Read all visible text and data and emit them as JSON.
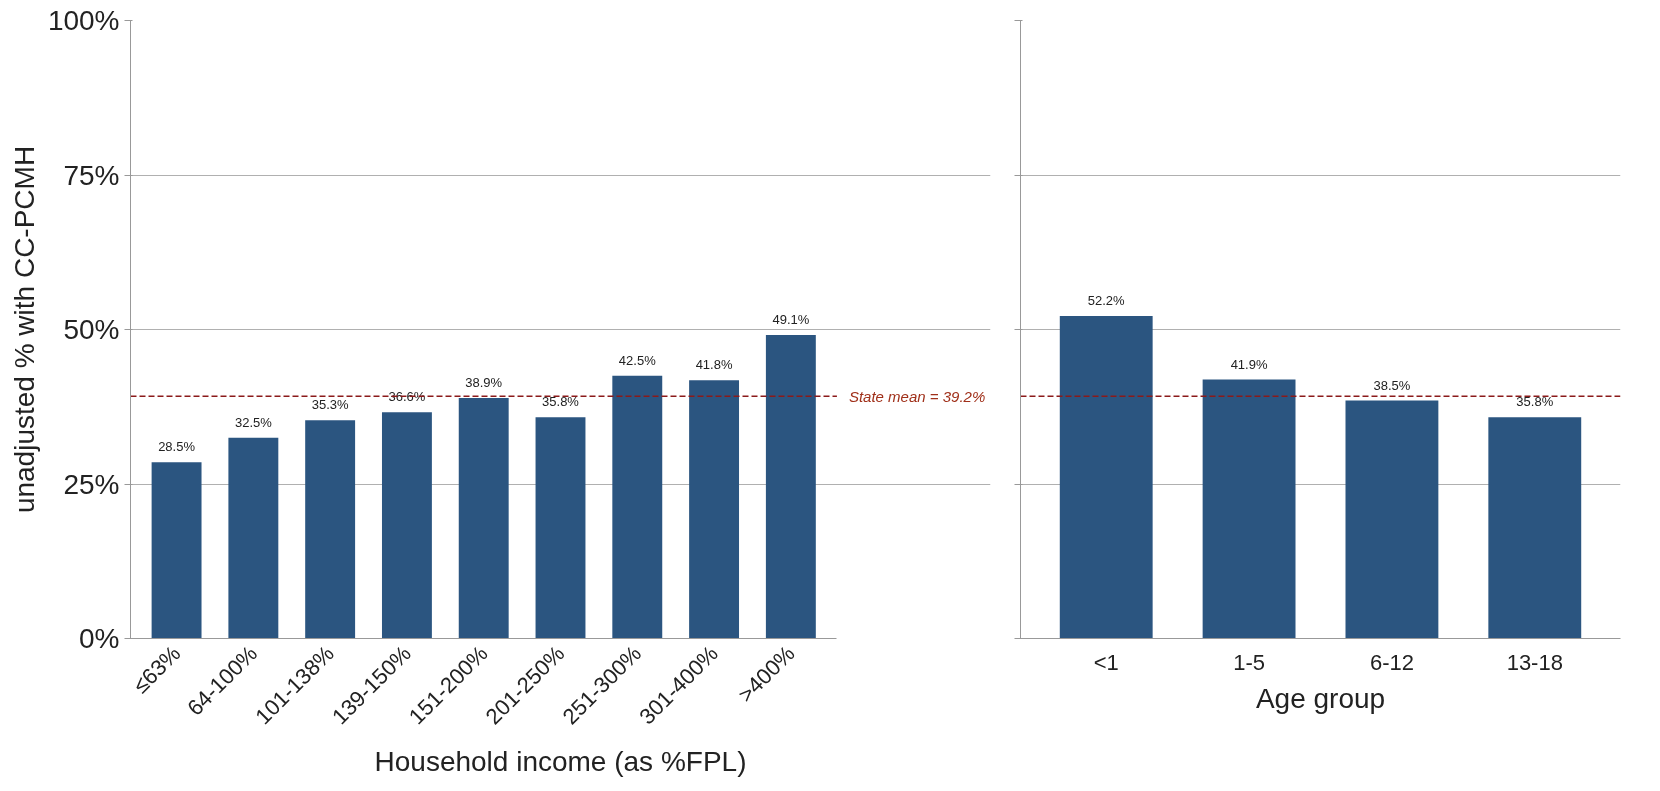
{
  "chart_data": [
    {
      "type": "bar",
      "xlabel": "Household income (as %FPL)",
      "ylabel": "unadjusted % with CC-PCMH",
      "categories": [
        "≤63%",
        "64-100%",
        "101-138%",
        "139-150%",
        "151-200%",
        "201-250%",
        "251-300%",
        "301-400%",
        ">400%"
      ],
      "values": [
        28.5,
        32.5,
        35.3,
        36.6,
        38.9,
        35.8,
        42.5,
        41.8,
        49.1
      ],
      "value_labels": [
        "28.5%",
        "32.5%",
        "35.3%",
        "36.6%",
        "38.9%",
        "35.8%",
        "42.5%",
        "41.8%",
        "49.1%"
      ],
      "color": "#2b5580",
      "ylim": [
        0,
        100
      ],
      "yticks": [
        {
          "value": 0,
          "label": "0%"
        },
        {
          "value": 25,
          "label": "25%"
        },
        {
          "value": 50,
          "label": "50%"
        },
        {
          "value": 75,
          "label": "75%"
        },
        {
          "value": 100,
          "label": "100%"
        }
      ],
      "grid": "y",
      "legend": false,
      "ref_lines": [
        {
          "axis": "y",
          "value": 39.2,
          "label": "State mean = 39.2%",
          "color": "#8b1a1a",
          "line_style": "dashed"
        }
      ]
    },
    {
      "type": "bar",
      "xlabel": "Age group",
      "categories": [
        "<1",
        "1-5",
        "6-12",
        "13-18"
      ],
      "values": [
        52.2,
        41.9,
        38.5,
        35.8
      ],
      "value_labels": [
        "52.2%",
        "41.9%",
        "38.5%",
        "35.8%"
      ],
      "color": "#2b5580",
      "ylim": [
        0,
        100
      ],
      "yticks": [
        {
          "value": 0,
          "label": null
        },
        {
          "value": 25,
          "label": null
        },
        {
          "value": 50,
          "label": null
        },
        {
          "value": 75,
          "label": null
        },
        {
          "value": 100,
          "label": null
        }
      ],
      "grid": "y",
      "legend": false,
      "tick_labels": "x",
      "ref_lines": [
        {
          "axis": "y",
          "value": 39.2,
          "color": "#8b1a1a",
          "line_style": "dashed"
        }
      ]
    }
  ]
}
